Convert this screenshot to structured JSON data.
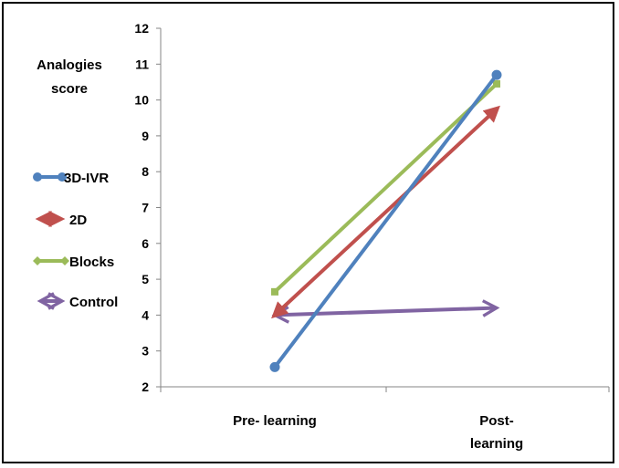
{
  "chart_data": {
    "type": "line",
    "categories": [
      [
        "Pre- learning"
      ],
      [
        "Post-",
        "learning"
      ]
    ],
    "ylabel_lines": [
      "Analogies",
      "score"
    ],
    "ylim": [
      2,
      12
    ],
    "yticks": [
      2,
      3,
      4,
      5,
      6,
      7,
      8,
      9,
      10,
      11,
      12
    ],
    "grid": false,
    "legend_position": "left",
    "series": [
      {
        "name": "3D-IVR",
        "values": [
          2.55,
          10.7
        ],
        "color": "#4F81BD",
        "marker": "circle"
      },
      {
        "name": "2D",
        "values": [
          4.0,
          9.75
        ],
        "color": "#C0504D",
        "marker": "arrow"
      },
      {
        "name": "Blocks",
        "values": [
          4.65,
          10.45
        ],
        "color": "#9BBB59",
        "marker": "square"
      },
      {
        "name": "Control",
        "values": [
          4.0,
          4.2
        ],
        "color": "#8064A2",
        "marker": "open-arrow"
      }
    ]
  }
}
